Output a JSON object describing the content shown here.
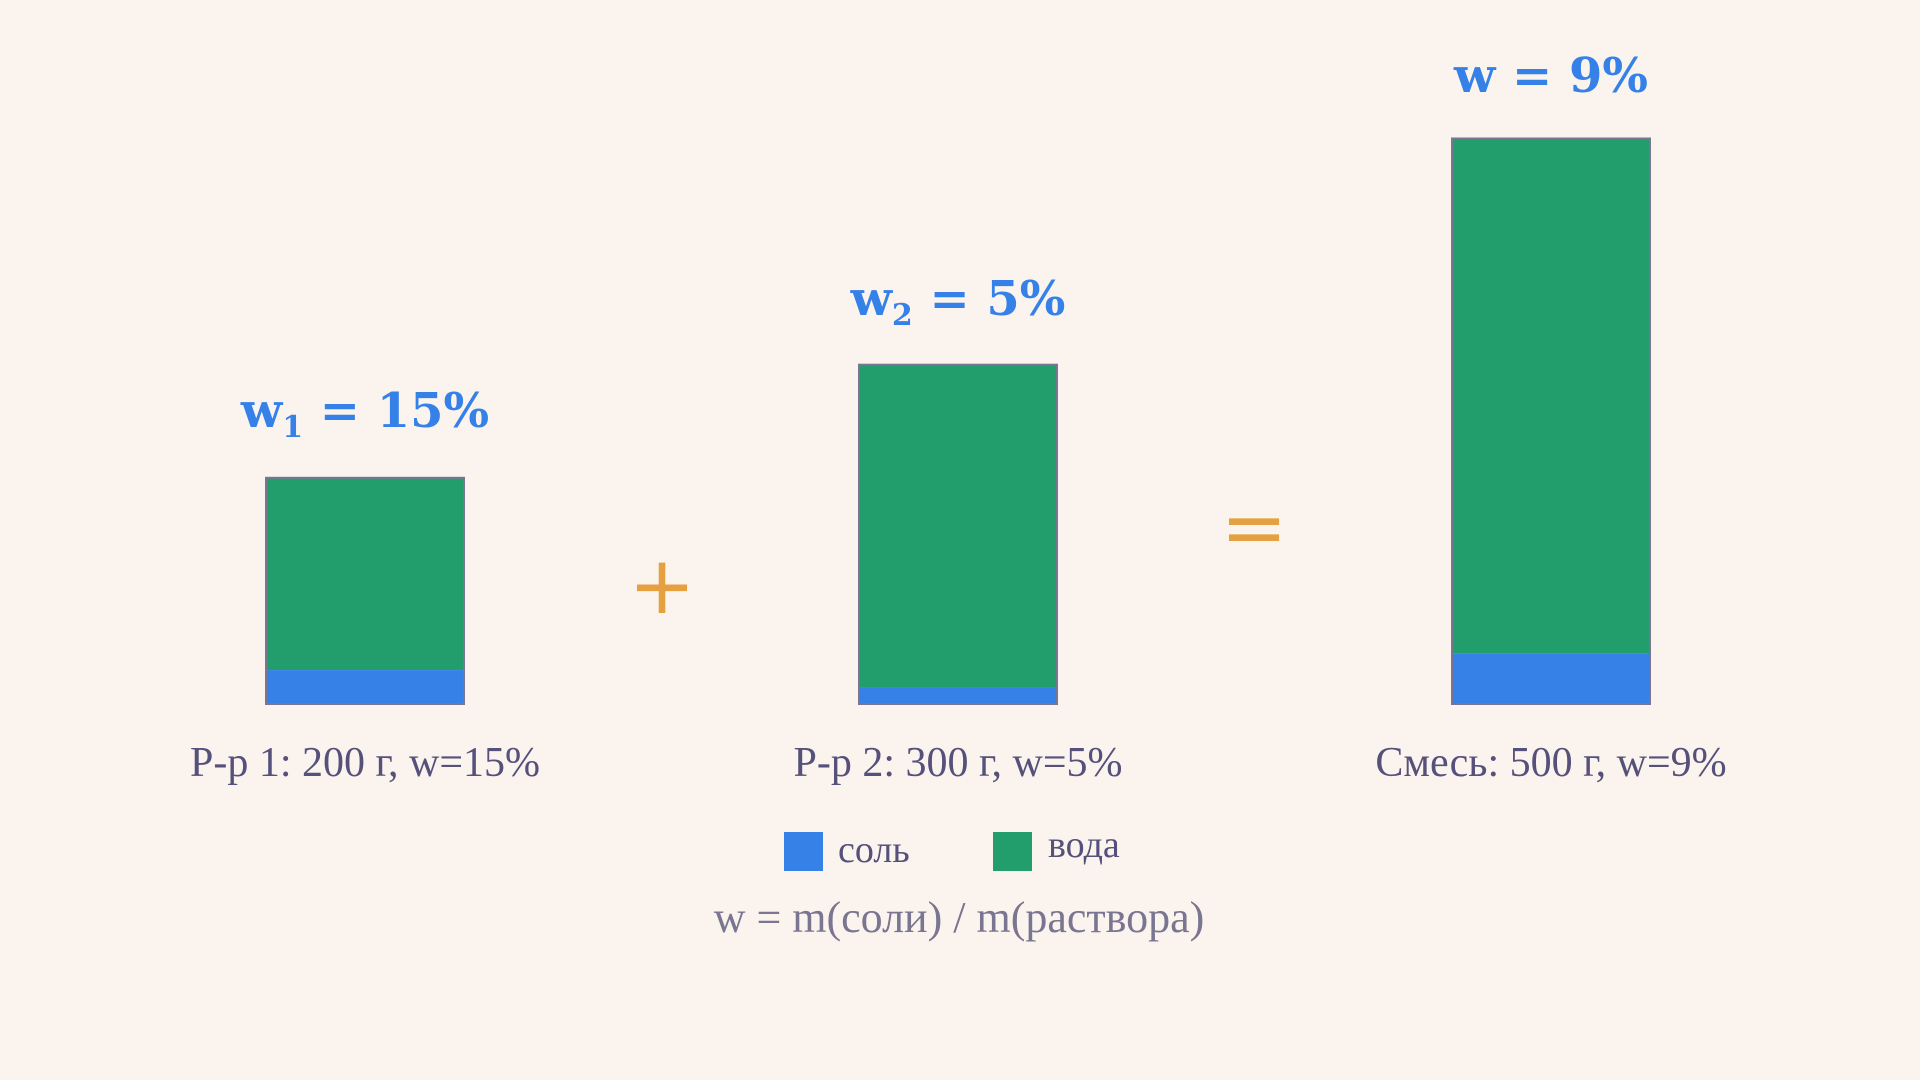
{
  "colors": {
    "background": "#FBF4EE",
    "salt": "#3581E8",
    "water": "#229E6C",
    "border": "#7A7590",
    "percent_label": "#3581E8",
    "operator": "#E5A040",
    "caption": "#55517A",
    "formula": "#7A7590"
  },
  "solutions": [
    {
      "w_symbol": "w",
      "w_subscript": "1",
      "w_text": " = 15%",
      "mass": 200,
      "salt_fraction": 0.15,
      "caption": "Р-р 1: 200 г, w=15%"
    },
    {
      "w_symbol": "w",
      "w_subscript": "2",
      "w_text": " = 5%",
      "mass": 300,
      "salt_fraction": 0.05,
      "caption": "Р-р 2: 300 г, w=5%"
    },
    {
      "w_symbol": "w",
      "w_subscript": "",
      "w_text": " = 9%",
      "mass": 500,
      "salt_fraction": 0.09,
      "caption": "Смесь: 500 г, w=9%"
    }
  ],
  "operators": {
    "plus": "+",
    "equals": "="
  },
  "legend": {
    "salt_label": "соль",
    "water_label": "вода"
  },
  "formula": "w = m(соли) / m(раствора)"
}
